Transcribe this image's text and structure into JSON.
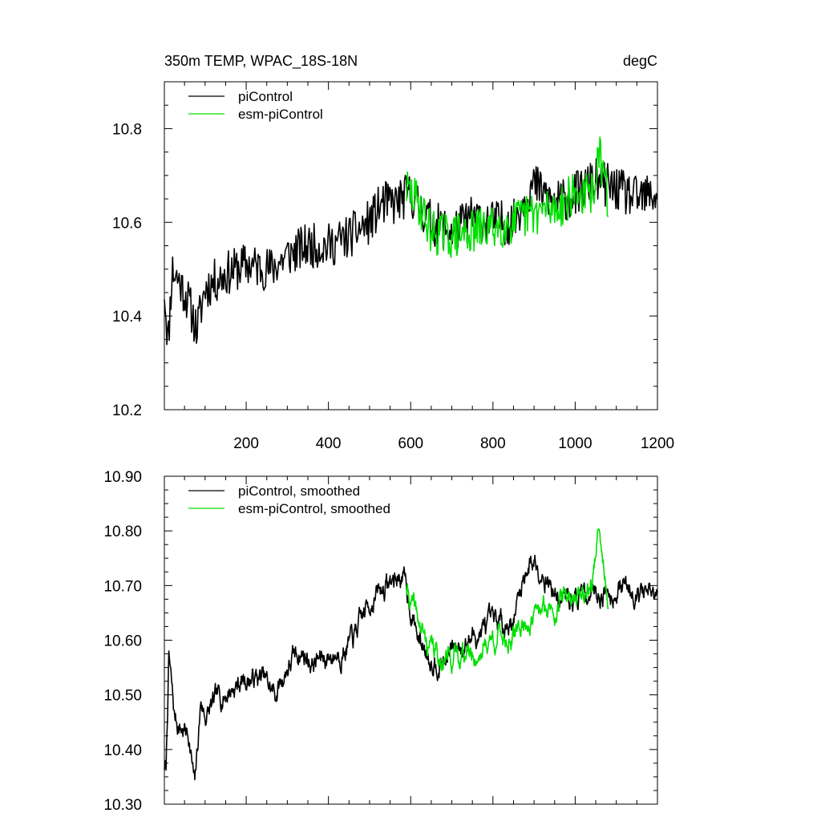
{
  "chart_data": [
    {
      "type": "line",
      "title": "350m TEMP, WPAC_18S-18N",
      "units": "degC",
      "xlim": [
        1,
        1200
      ],
      "ylim": [
        10.2,
        10.9
      ],
      "x_ticks": [
        200,
        400,
        600,
        800,
        1000,
        1200
      ],
      "x_tick_labels": [
        "200",
        "400",
        "600",
        "800",
        "1000",
        "1200"
      ],
      "y_ticks": [
        10.2,
        10.4,
        10.6,
        10.8
      ],
      "y_tick_labels": [
        "10.2",
        "10.4",
        "10.6",
        "10.8"
      ],
      "legend_position": "top-left",
      "series": [
        {
          "name": "piControl",
          "color": "#000000",
          "x_start": 1,
          "x_end": 1200,
          "anchors_x": [
            1,
            10,
            20,
            40,
            60,
            80,
            100,
            150,
            200,
            260,
            300,
            350,
            400,
            450,
            500,
            530,
            560,
            600,
            650,
            700,
            750,
            800,
            850,
            880,
            900,
            950,
            1000,
            1050,
            1100,
            1150,
            1200
          ],
          "anchors_y": [
            10.46,
            10.34,
            10.5,
            10.47,
            10.43,
            10.37,
            10.46,
            10.49,
            10.51,
            10.5,
            10.53,
            10.55,
            10.55,
            10.57,
            10.6,
            10.64,
            10.64,
            10.66,
            10.6,
            10.58,
            10.61,
            10.6,
            10.6,
            10.66,
            10.68,
            10.64,
            10.66,
            10.69,
            10.67,
            10.65,
            10.66
          ],
          "noise_amplitude": 0.048,
          "seed": 11
        },
        {
          "name": "esm-piControl",
          "color": "#00e000",
          "x_start": 590,
          "x_end": 1080,
          "anchors_x": [
            590,
            620,
            650,
            700,
            750,
            800,
            850,
            900,
            950,
            1000,
            1040,
            1060,
            1080
          ],
          "anchors_y": [
            10.67,
            10.64,
            10.58,
            10.57,
            10.58,
            10.59,
            10.6,
            10.62,
            10.63,
            10.66,
            10.66,
            10.74,
            10.65
          ],
          "noise_amplitude": 0.048,
          "seed": 29
        }
      ]
    },
    {
      "type": "line",
      "title": "",
      "xlim": [
        1,
        1200
      ],
      "ylim": [
        10.3,
        10.9
      ],
      "x_ticks": [
        200,
        400,
        600,
        800,
        1000,
        1200
      ],
      "x_tick_labels": [],
      "y_ticks": [
        10.3,
        10.4,
        10.5,
        10.6,
        10.7,
        10.8,
        10.9
      ],
      "y_tick_labels": [
        "10.30",
        "10.40",
        "10.50",
        "10.60",
        "10.70",
        "10.80",
        "10.90"
      ],
      "legend_position": "top-left",
      "series": [
        {
          "name": "piControl, smoothed",
          "color": "#000000",
          "x_start": 1,
          "x_end": 1200,
          "anchors_x": [
            1,
            5,
            12,
            25,
            40,
            60,
            75,
            90,
            100,
            130,
            160,
            200,
            240,
            270,
            300,
            330,
            360,
            400,
            430,
            460,
            500,
            540,
            580,
            600,
            620,
            650,
            680,
            700,
            740,
            780,
            820,
            850,
            880,
            900,
            930,
            960,
            1000,
            1040,
            1080,
            1120,
            1160,
            1200
          ],
          "anchors_y": [
            10.37,
            10.36,
            10.57,
            10.46,
            10.44,
            10.43,
            10.33,
            10.49,
            10.46,
            10.49,
            10.51,
            10.53,
            10.53,
            10.5,
            10.55,
            10.58,
            10.56,
            10.57,
            10.58,
            10.6,
            10.67,
            10.7,
            10.72,
            10.66,
            10.6,
            10.57,
            10.56,
            10.58,
            10.6,
            10.62,
            10.63,
            10.64,
            10.73,
            10.75,
            10.72,
            10.67,
            10.68,
            10.69,
            10.69,
            10.7,
            10.69,
            10.67
          ],
          "noise_amplitude": 0.03,
          "seed": 7
        },
        {
          "name": "esm-piControl, smoothed",
          "color": "#00e000",
          "x_start": 590,
          "x_end": 1080,
          "anchors_x": [
            590,
            610,
            640,
            670,
            700,
            730,
            760,
            790,
            820,
            850,
            870,
            900,
            940,
            980,
            1020,
            1040,
            1055,
            1065,
            1080
          ],
          "anchors_y": [
            10.69,
            10.65,
            10.59,
            10.57,
            10.57,
            10.58,
            10.57,
            10.6,
            10.61,
            10.6,
            10.63,
            10.64,
            10.66,
            10.68,
            10.69,
            10.7,
            10.79,
            10.75,
            10.67
          ],
          "noise_amplitude": 0.03,
          "seed": 41
        }
      ]
    }
  ]
}
